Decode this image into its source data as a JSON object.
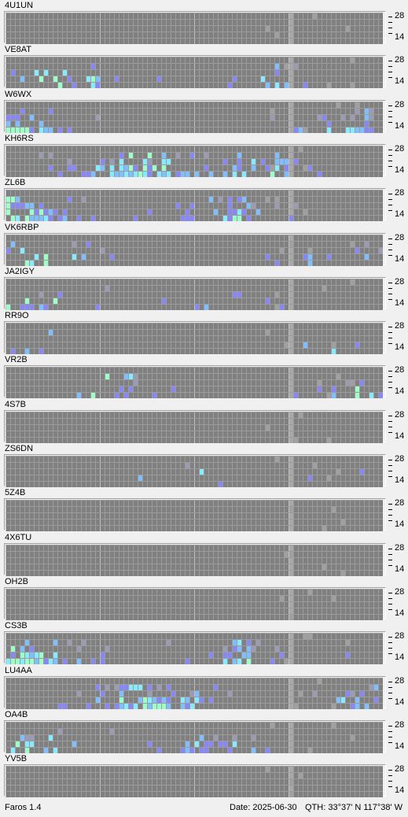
{
  "app": {
    "name_version": "Faros 1.4"
  },
  "status": {
    "date": "Date: 2025-06-30",
    "qth": "QTH: 33°37' N  117°38' W"
  },
  "axis": {
    "top_label": "28",
    "bottom_label": "14"
  },
  "colors": {
    "background": "#808080",
    "gridline": "#9c9c9c",
    "major_gridline": "#c0c0c0",
    "current_column": "#a8a8a8",
    "weak": "#9b9bb5",
    "medium": "#8787f8",
    "strong": "#7fbfff",
    "stronger": "#87ebff",
    "strongest": "#9cffc8"
  },
  "beacons": [
    {
      "callsign": "4U1UN",
      "signal": "none"
    },
    {
      "callsign": "VE8AT",
      "signal": "medium"
    },
    {
      "callsign": "W6WX",
      "signal": "high"
    },
    {
      "callsign": "KH6RS",
      "signal": "high"
    },
    {
      "callsign": "ZL6B",
      "signal": "high"
    },
    {
      "callsign": "VK6RBP",
      "signal": "medium"
    },
    {
      "callsign": "JA2IGY",
      "signal": "medium"
    },
    {
      "callsign": "RR9O",
      "signal": "low"
    },
    {
      "callsign": "VR2B",
      "signal": "medium"
    },
    {
      "callsign": "4S7B",
      "signal": "none"
    },
    {
      "callsign": "ZS6DN",
      "signal": "low"
    },
    {
      "callsign": "5Z4B",
      "signal": "none"
    },
    {
      "callsign": "4X6TU",
      "signal": "none"
    },
    {
      "callsign": "OH2B",
      "signal": "none"
    },
    {
      "callsign": "CS3B",
      "signal": "high"
    },
    {
      "callsign": "LU4AA",
      "signal": "high"
    },
    {
      "callsign": "OA4B",
      "signal": "medium"
    },
    {
      "callsign": "YV5B",
      "signal": "none"
    }
  ]
}
